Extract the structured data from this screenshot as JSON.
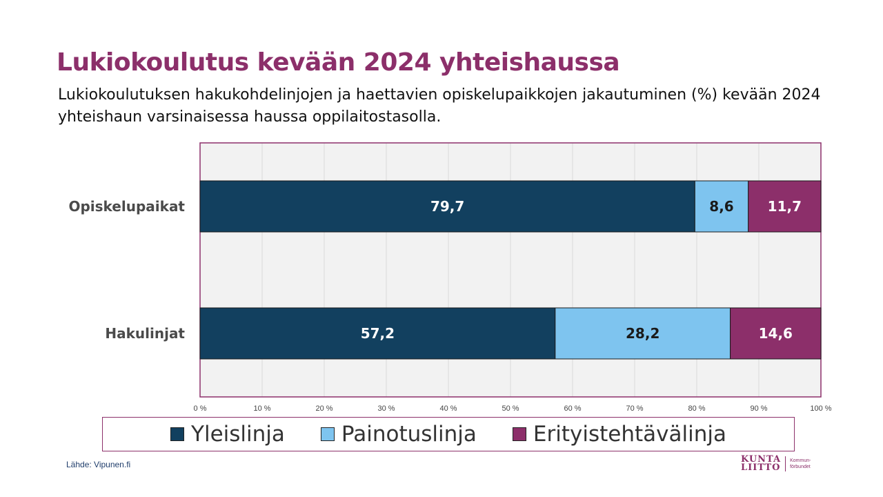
{
  "title": "Lukiokoulutus kevään 2024 yhteishaussa",
  "subtitle": "Lukiokoulutuksen hakukohdelinjojen ja haettavien opiskelupaikkojen jakautuminen (%) kevään 2024 yhteishaun varsinaisessa haussa oppilaitostasolla.",
  "source": "Lähde: Vipunen.fi",
  "logo": {
    "line1": "KUNTA",
    "line2": "LIITTO",
    "sub1": "Kommun-",
    "sub2": "förbundet"
  },
  "colors": {
    "yleislinja": "#12405f",
    "painotuslinja": "#7ec4ef",
    "erityistehtavalinja": "#8c2f6a",
    "plot_bg": "#f2f2f2",
    "brand": "#8c2f6a"
  },
  "chart_data": {
    "type": "bar",
    "orientation": "horizontal",
    "stacked": true,
    "categories": [
      "Opiskelupaikat",
      "Hakulinjat"
    ],
    "series": [
      {
        "name": "Yleislinja",
        "values": [
          79.7,
          57.2
        ],
        "labels": [
          "79,7",
          "57,2"
        ]
      },
      {
        "name": "Painotuslinja",
        "values": [
          8.6,
          28.2
        ],
        "labels": [
          "8,6",
          "28,2"
        ]
      },
      {
        "name": "Erityistehtävälinja",
        "values": [
          11.7,
          14.6
        ],
        "labels": [
          "11,7",
          "14,6"
        ]
      }
    ],
    "xlim": [
      0,
      100
    ],
    "xticks": [
      0,
      10,
      20,
      30,
      40,
      50,
      60,
      70,
      80,
      90,
      100
    ],
    "xtick_labels": [
      "0 %",
      "10 %",
      "20 %",
      "30 %",
      "40 %",
      "50 %",
      "60 %",
      "70 %",
      "80 %",
      "90 %",
      "100 %"
    ],
    "grid": true,
    "legend": "bottom"
  }
}
